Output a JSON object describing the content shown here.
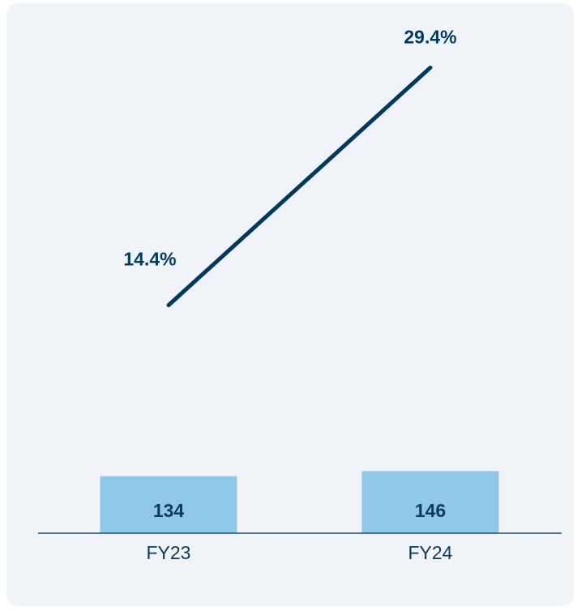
{
  "chart_data": {
    "type": "bar",
    "categories": [
      "FY23",
      "FY24"
    ],
    "values": [
      134,
      146
    ],
    "color": "#90c8e8",
    "ylim": [
      0,
      1140
    ],
    "line": {
      "type": "line",
      "values": [
        14.4,
        29.4
      ],
      "value_labels": [
        "14.4%",
        "29.4%"
      ],
      "color": "#003a5d",
      "y2lim": [
        0,
        30.6
      ]
    }
  }
}
